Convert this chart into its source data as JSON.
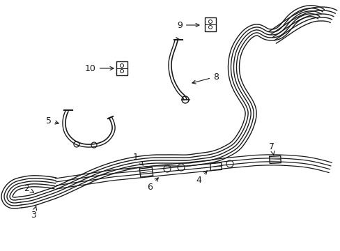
{
  "bg_color": "#ffffff",
  "line_color": "#1a1a1a",
  "lw": 1.0,
  "fig_width": 4.89,
  "fig_height": 3.6
}
